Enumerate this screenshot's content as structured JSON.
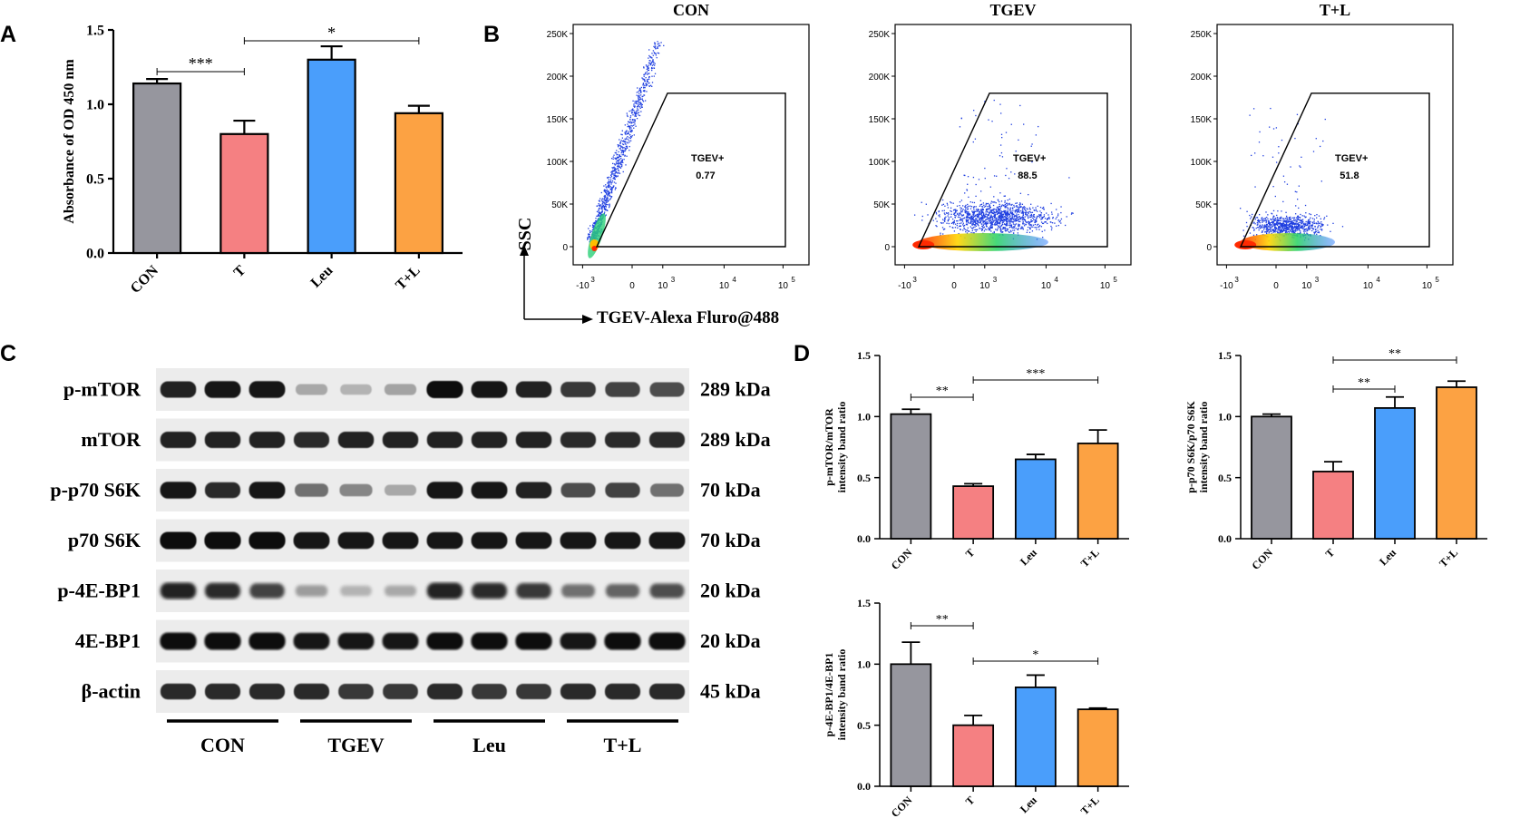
{
  "panels": {
    "A": "A",
    "B": "B",
    "C": "C",
    "D": "D"
  },
  "colors": {
    "CON": "#96969e",
    "T": "#f58082",
    "Leu": "#4a9efb",
    "TL": "#fca243"
  },
  "chart_data": [
    {
      "id": "A",
      "type": "bar",
      "title": "",
      "categories": [
        "CON",
        "T",
        "Leu",
        "T+L"
      ],
      "values": [
        1.14,
        0.8,
        1.3,
        0.94
      ],
      "errors": [
        0.03,
        0.09,
        0.09,
        0.05
      ],
      "ylabel": "Absorbance of OD 450 nm",
      "xlabel": "",
      "ylim": [
        0,
        1.5
      ],
      "yticks": [
        "0.0",
        "0.5",
        "1.0",
        "1.5"
      ],
      "significance": [
        {
          "from": 0,
          "to": 1,
          "label": "***"
        },
        {
          "from": 1,
          "to": 3,
          "label": "*"
        }
      ]
    },
    {
      "id": "B",
      "type": "scatter",
      "ylabel": "SSC",
      "xlabel": "TGEV-Alexa Fluro@488",
      "yticks": [
        "0",
        "50K",
        "100K",
        "150K",
        "200K",
        "250K"
      ],
      "xticks": [
        "-10",
        "0",
        "10",
        "10",
        "10"
      ],
      "xtick_exponents": [
        "3",
        "",
        "3",
        "4",
        "5"
      ],
      "plots": [
        {
          "title": "CON",
          "gate_label": "TGEV+",
          "gate_value": "0.77"
        },
        {
          "title": "TGEV",
          "gate_label": "TGEV+",
          "gate_value": "88.5"
        },
        {
          "title": "T+L",
          "gate_label": "TGEV+",
          "gate_value": "51.8"
        }
      ]
    },
    {
      "id": "C",
      "type": "table",
      "rows": [
        {
          "protein": "p-mTOR",
          "kda": "289 kDa",
          "intensity": [
            0.9,
            0.95,
            0.95,
            0.3,
            0.25,
            0.32,
            1.0,
            0.95,
            0.9,
            0.8,
            0.75,
            0.7
          ],
          "blur": 0.5
        },
        {
          "protein": "mTOR",
          "kda": "289 kDa",
          "intensity": [
            0.9,
            0.9,
            0.9,
            0.85,
            0.9,
            0.9,
            0.9,
            0.9,
            0.9,
            0.85,
            0.85,
            0.85
          ],
          "blur": 0.5
        },
        {
          "protein": "p-p70 S6K",
          "kda": "70 kDa",
          "intensity": [
            0.95,
            0.85,
            0.95,
            0.55,
            0.45,
            0.3,
            0.95,
            0.95,
            0.9,
            0.7,
            0.75,
            0.55
          ],
          "blur": 0.5
        },
        {
          "protein": "p70 S6K",
          "kda": "70 kDa",
          "intensity": [
            1.0,
            1.0,
            1.0,
            0.95,
            0.95,
            0.95,
            0.95,
            0.95,
            0.95,
            0.95,
            0.95,
            0.95
          ],
          "blur": 0.5
        },
        {
          "protein": "p-4E-BP1",
          "kda": "20 kDa",
          "intensity": [
            0.9,
            0.85,
            0.75,
            0.35,
            0.25,
            0.3,
            0.9,
            0.85,
            0.8,
            0.55,
            0.6,
            0.7
          ],
          "blur": 1.5
        },
        {
          "protein": "4E-BP1",
          "kda": "20 kDa",
          "intensity": [
            1.0,
            1.0,
            1.0,
            0.95,
            0.95,
            0.95,
            1.0,
            1.0,
            1.0,
            0.95,
            1.0,
            1.0
          ],
          "blur": 1.0
        },
        {
          "protein": "β-actin",
          "kda": "45 kDa",
          "intensity": [
            0.85,
            0.85,
            0.85,
            0.85,
            0.8,
            0.8,
            0.85,
            0.8,
            0.8,
            0.85,
            0.85,
            0.85
          ],
          "blur": 0.4
        }
      ],
      "groups": [
        "CON",
        "TGEV",
        "Leu",
        "T+L"
      ]
    },
    {
      "id": "D1",
      "type": "bar",
      "categories": [
        "CON",
        "T",
        "Leu",
        "T+L"
      ],
      "values": [
        1.02,
        0.43,
        0.65,
        0.78
      ],
      "errors": [
        0.04,
        0.02,
        0.04,
        0.11
      ],
      "ylabel": [
        "p-mTOR/mTOR",
        "intensity band ratio"
      ],
      "ylim": [
        0,
        1.5
      ],
      "yticks": [
        "0.0",
        "0.5",
        "1.0",
        "1.5"
      ],
      "significance": [
        {
          "from": 0,
          "to": 1,
          "label": "**"
        },
        {
          "from": 1,
          "to": 3,
          "label": "***"
        }
      ]
    },
    {
      "id": "D2",
      "type": "bar",
      "categories": [
        "CON",
        "T",
        "Leu",
        "T+L"
      ],
      "values": [
        1.0,
        0.55,
        1.07,
        1.24
      ],
      "errors": [
        0.02,
        0.08,
        0.09,
        0.05
      ],
      "ylabel": [
        "p-p70 S6K/p70 S6K",
        "intensity band ratio"
      ],
      "ylim": [
        0,
        1.5
      ],
      "yticks": [
        "0.0",
        "0.5",
        "1.0",
        "1.5"
      ],
      "significance": [
        {
          "from": 1,
          "to": 2,
          "label": "**"
        },
        {
          "from": 1,
          "to": 3,
          "label": "**"
        }
      ]
    },
    {
      "id": "D3",
      "type": "bar",
      "categories": [
        "CON",
        "T",
        "Leu",
        "T+L"
      ],
      "values": [
        1.0,
        0.5,
        0.81,
        0.63
      ],
      "errors": [
        0.18,
        0.08,
        0.1,
        0.01
      ],
      "ylabel": [
        "p-4E-BP1/4E-BP1",
        "intensity band ratio"
      ],
      "ylim": [
        0,
        1.5
      ],
      "yticks": [
        "0.0",
        "0.5",
        "1.0",
        "1.5"
      ],
      "significance": [
        {
          "from": 0,
          "to": 1,
          "label": "**"
        },
        {
          "from": 1,
          "to": 3,
          "label": "*"
        }
      ]
    }
  ]
}
